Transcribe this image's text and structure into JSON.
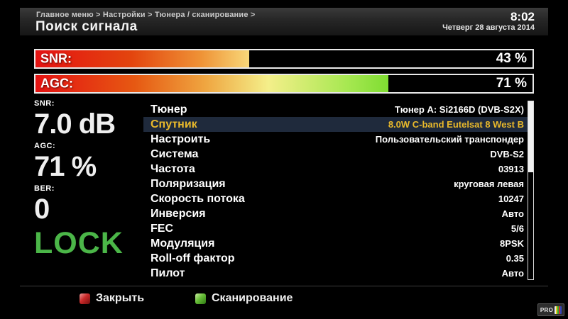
{
  "header": {
    "breadcrumb": "Главное меню > Настройки > Тюнера / сканирование >",
    "title": "Поиск сигнала",
    "time": "8:02",
    "date": "Четверг 28 августа 2014"
  },
  "meters": [
    {
      "label": "SNR:",
      "value_text": "43 %",
      "percent": 43
    },
    {
      "label": "AGC:",
      "value_text": "71 %",
      "percent": 71
    }
  ],
  "stats": [
    {
      "label": "SNR:",
      "value": "7.0 dB"
    },
    {
      "label": "AGC:",
      "value": "71 %"
    },
    {
      "label": "BER:",
      "value": "0"
    }
  ],
  "lock_status": "LOCK",
  "settings": {
    "rows": [
      {
        "name": "Тюнер",
        "value": "Тюнер A: Si2166D (DVB-S2X)",
        "selected": false
      },
      {
        "name": "Спутник",
        "value": "8.0W C-band Eutelsat 8 West B",
        "selected": true
      },
      {
        "name": "Настроить",
        "value": "Пользовательский транспондер",
        "selected": false
      },
      {
        "name": "Система",
        "value": "DVB-S2",
        "selected": false
      },
      {
        "name": "Частота",
        "value": "03913",
        "selected": false
      },
      {
        "name": "Поляризация",
        "value": "круговая левая",
        "selected": false
      },
      {
        "name": "Скорость потока",
        "value": "10247",
        "selected": false
      },
      {
        "name": "Инверсия",
        "value": "Авто",
        "selected": false
      },
      {
        "name": "FEC",
        "value": "5/6",
        "selected": false
      },
      {
        "name": "Модуляция",
        "value": "8PSK",
        "selected": false
      },
      {
        "name": "Roll-off фактор",
        "value": "0.35",
        "selected": false
      },
      {
        "name": "Пилот",
        "value": "Авто",
        "selected": false
      }
    ]
  },
  "footer": {
    "buttons": [
      {
        "key": "red",
        "label": "Закрыть"
      },
      {
        "key": "green",
        "label": "Сканирование"
      }
    ],
    "logo_text": "PRO"
  },
  "colors": {
    "lock_green": "#4bb648",
    "selected_row_bg": "#1f2a3c",
    "selected_row_text": "#e9b92b",
    "red_key": "#cb2a2a",
    "green_key": "#67bd38"
  }
}
